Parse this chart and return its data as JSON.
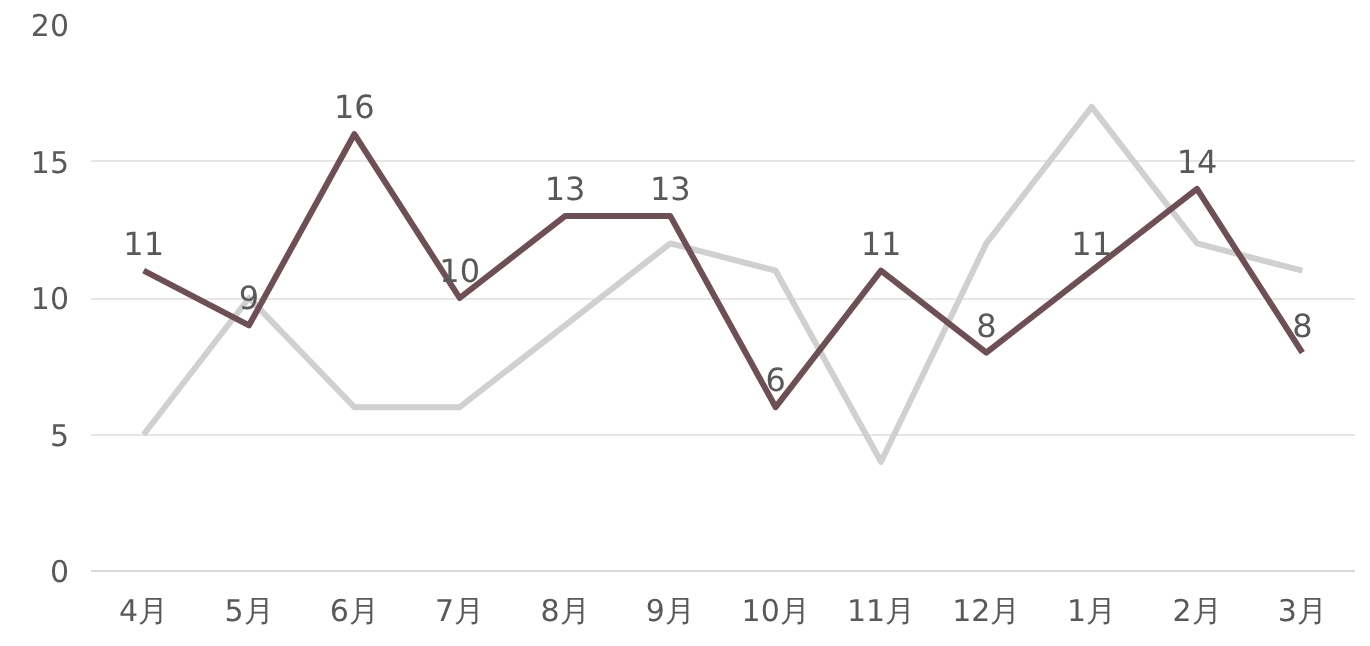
{
  "chart_data": {
    "type": "line",
    "categories": [
      "4月",
      "5月",
      "6月",
      "7月",
      "8月",
      "9月",
      "10月",
      "11月",
      "12月",
      "1月",
      "2月",
      "3月"
    ],
    "series": [
      {
        "color": "#d0d0d0",
        "values": [
          5,
          10,
          6,
          6,
          9,
          12,
          11,
          4,
          12,
          17,
          12,
          11
        ]
      },
      {
        "color": "#6e4f55",
        "values": [
          11,
          9,
          16,
          10,
          13,
          13,
          6,
          11,
          8,
          11,
          14,
          8
        ],
        "data_labels": true
      }
    ],
    "ylim": [
      0,
      20
    ],
    "yticks": [
      0,
      5,
      10,
      15,
      20
    ],
    "grid": "y",
    "marker": "none",
    "line_style": "solid"
  }
}
